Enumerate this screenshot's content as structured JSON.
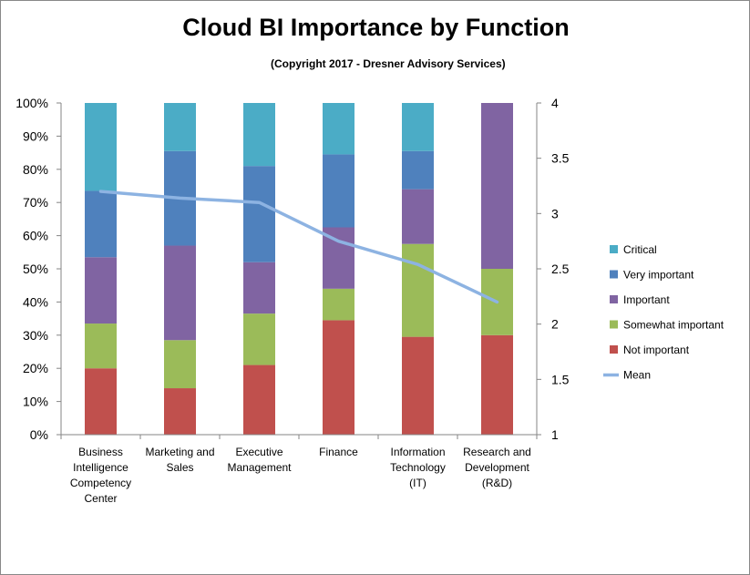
{
  "chart_data": {
    "type": "bar",
    "stacked": true,
    "title": "Cloud BI Importance by Function",
    "subtitle": "(Copyright 2017 - Dresner Advisory Services)",
    "categories": [
      [
        "Business",
        "Intelligence",
        "Competency",
        "Center"
      ],
      [
        "Marketing and",
        "Sales"
      ],
      [
        "Executive",
        "Management"
      ],
      [
        "Finance"
      ],
      [
        "Information",
        "Technology",
        "(IT)"
      ],
      [
        "Research and",
        "Development",
        "(R&D)"
      ]
    ],
    "y_ticks": [
      "0%",
      "10%",
      "20%",
      "30%",
      "40%",
      "50%",
      "60%",
      "70%",
      "80%",
      "90%",
      "100%"
    ],
    "y2_ticks": [
      "1",
      "1.5",
      "2",
      "2.5",
      "3",
      "3.5",
      "4"
    ],
    "ylim": [
      0,
      100
    ],
    "y2lim": [
      1,
      4
    ],
    "series": [
      {
        "name": "Not important",
        "color": "#c0504d",
        "values": [
          20,
          14,
          21,
          34.5,
          29.5,
          30
        ]
      },
      {
        "name": "Somewhat important",
        "color": "#9bbb59",
        "values": [
          13.5,
          14.5,
          15.5,
          9.5,
          28,
          20
        ]
      },
      {
        "name": "Important",
        "color": "#8064a2",
        "values": [
          20,
          28.5,
          15.5,
          18.5,
          16.5,
          50
        ]
      },
      {
        "name": "Very important",
        "color": "#4f81bd",
        "values": [
          20,
          28.5,
          29,
          22,
          11.5,
          0
        ]
      },
      {
        "name": "Critical",
        "color": "#4bacc6",
        "values": [
          26.5,
          14.5,
          19,
          15.5,
          14.5,
          0
        ]
      }
    ],
    "mean": {
      "name": "Mean",
      "color": "#8db3e2",
      "values": [
        3.2,
        3.14,
        3.1,
        2.75,
        2.54,
        2.2
      ]
    },
    "legend": [
      {
        "name": "Critical",
        "color": "#4bacc6",
        "kind": "box"
      },
      {
        "name": "Very important",
        "color": "#4f81bd",
        "kind": "box"
      },
      {
        "name": "Important",
        "color": "#8064a2",
        "kind": "box"
      },
      {
        "name": "Somewhat important",
        "color": "#9bbb59",
        "kind": "box"
      },
      {
        "name": "Not important",
        "color": "#c0504d",
        "kind": "box"
      },
      {
        "name": "Mean",
        "color": "#8db3e2",
        "kind": "line"
      }
    ],
    "legend_position": "right",
    "grid": false
  }
}
